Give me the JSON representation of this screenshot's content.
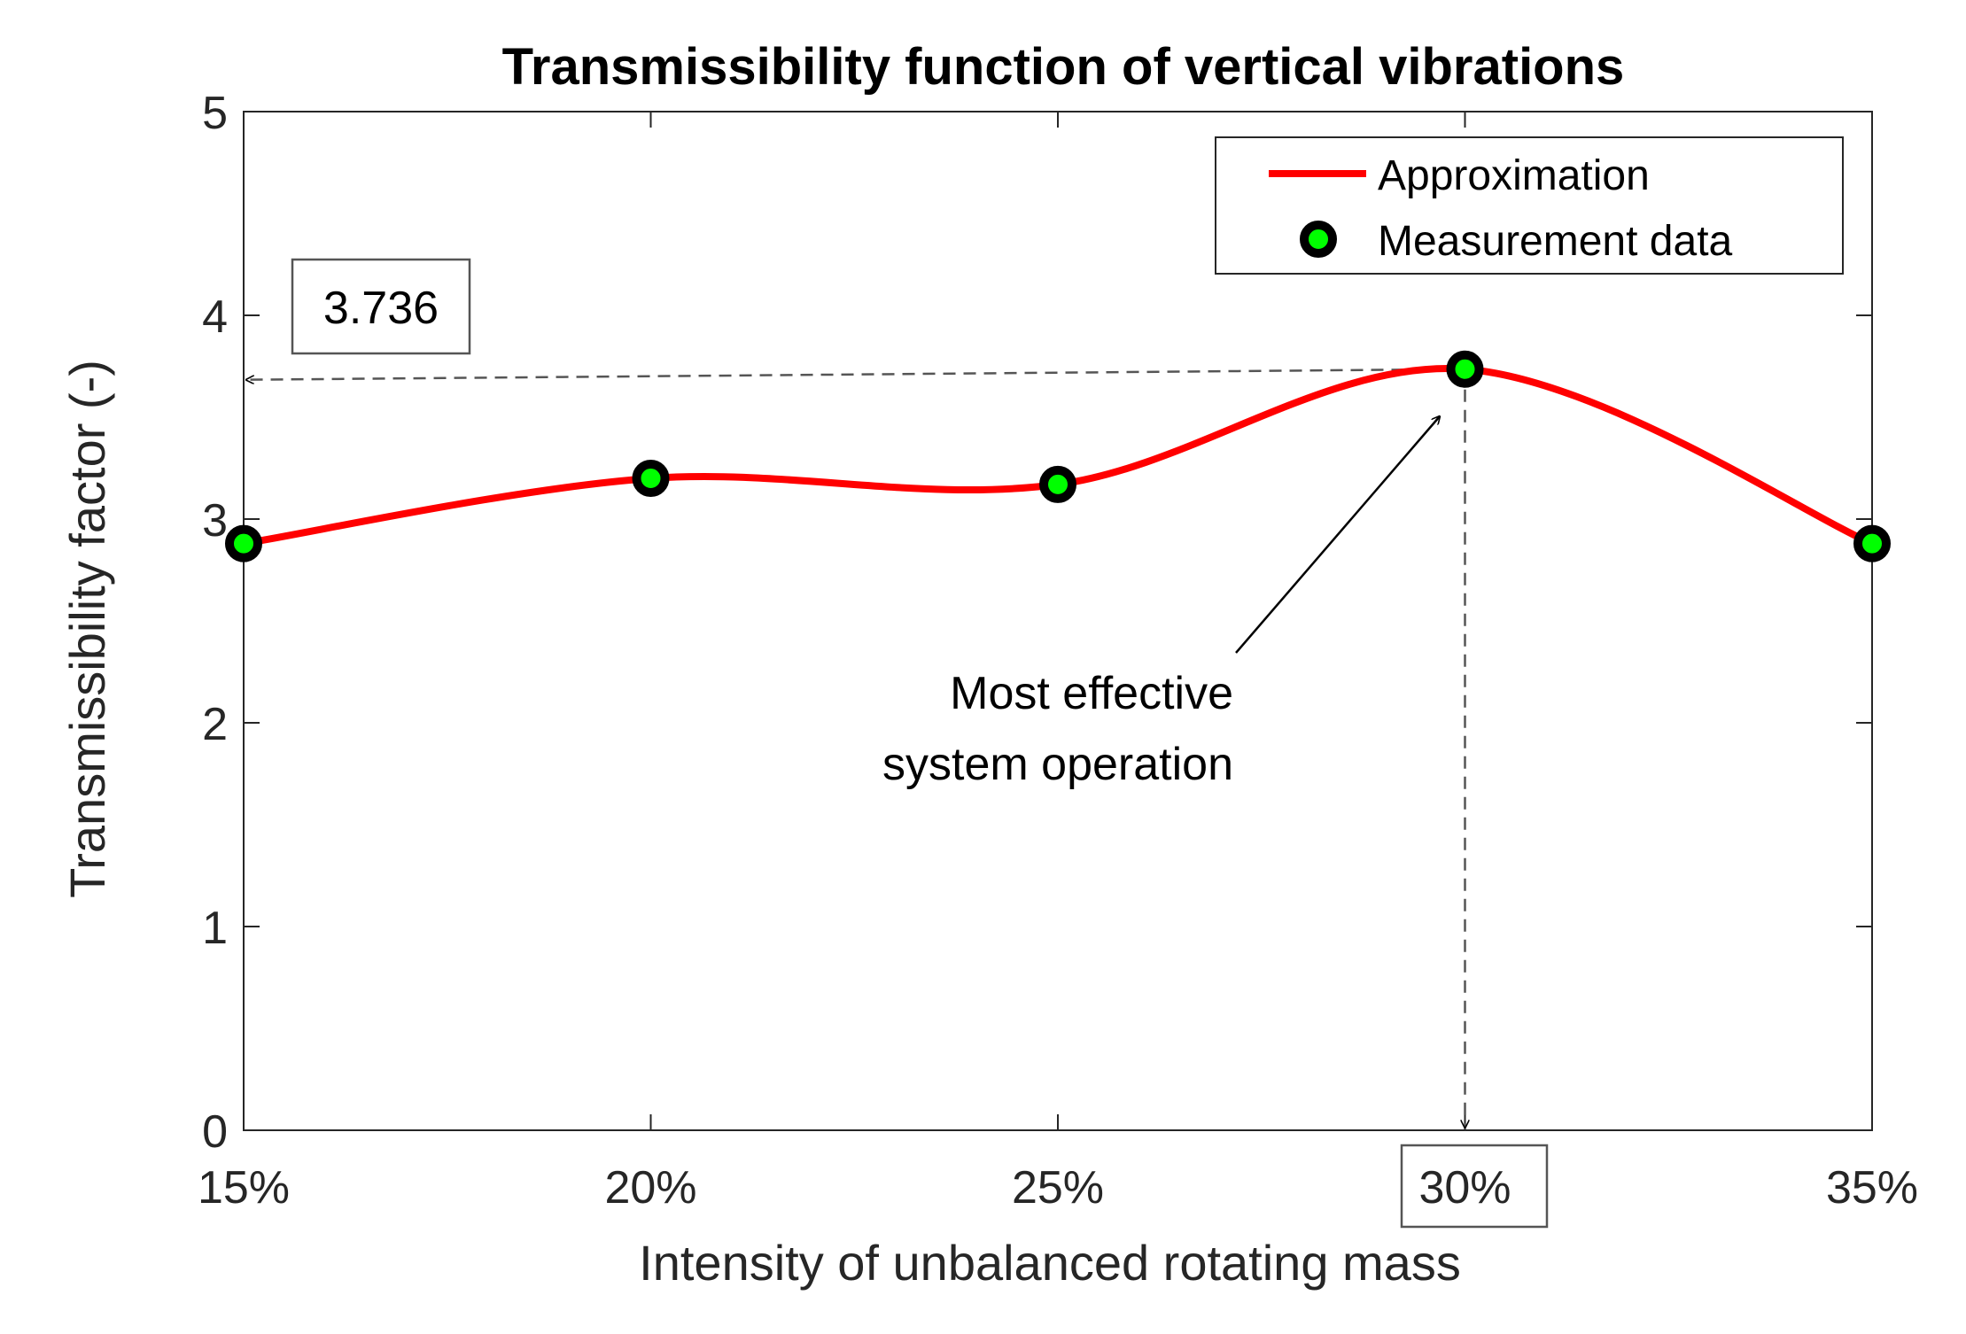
{
  "chart_data": {
    "type": "line",
    "title": "Transmissibility function of vertical vibrations",
    "xlabel": "Intensity of unbalanced rotating mass",
    "ylabel": "Transmissibility factor (-)",
    "categories": [
      "15%",
      "20%",
      "25%",
      "30%",
      "35%"
    ],
    "x": [
      15,
      20,
      25,
      30,
      35
    ],
    "xlim": [
      15,
      35
    ],
    "ylim": [
      0,
      5
    ],
    "yticks": [
      0,
      1,
      2,
      3,
      4,
      5
    ],
    "ytick_labels": [
      "0",
      "1",
      "2",
      "3",
      "4",
      "5"
    ],
    "grid": false,
    "legend_position": "top-right",
    "series": [
      {
        "name": "Approximation",
        "style": "smooth-line",
        "color": "#ff0000",
        "x": [
          15,
          20,
          25,
          30,
          35
        ],
        "values": [
          2.88,
          3.2,
          3.17,
          3.736,
          2.88
        ]
      },
      {
        "name": "Measurement data",
        "style": "markers",
        "marker_edge_color": "#000000",
        "marker_fill_color": "#00ff00",
        "x": [
          15,
          20,
          25,
          30,
          35
        ],
        "values": [
          2.88,
          3.2,
          3.17,
          3.736,
          2.88
        ]
      }
    ],
    "annotations": {
      "peak_value_label": "3.736",
      "peak_value": 3.736,
      "peak_x": 30,
      "peak_x_label": "30%",
      "note_lines": [
        "Most effective",
        "system operation"
      ]
    }
  }
}
